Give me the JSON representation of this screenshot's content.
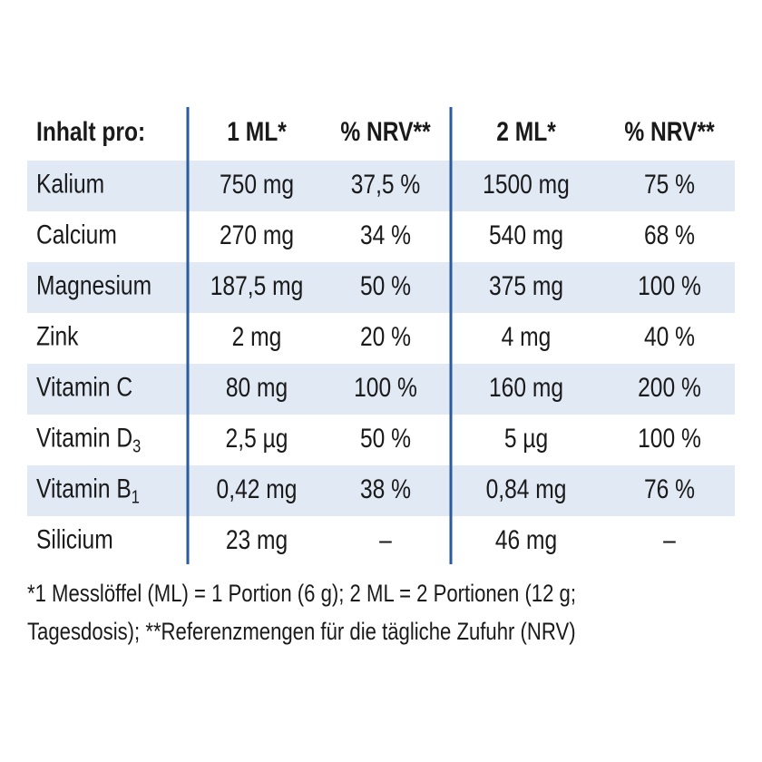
{
  "table": {
    "header": [
      "Inhalt pro:",
      "1 ML*",
      "% NRV**",
      "2 ML*",
      "% NRV**"
    ],
    "rows": [
      {
        "name": "Kalium",
        "cells": [
          "750 mg",
          "37,5 %",
          "1500 mg",
          "75 %"
        ]
      },
      {
        "name": "Calcium",
        "cells": [
          "270 mg",
          "34 %",
          "540 mg",
          "68 %"
        ]
      },
      {
        "name": "Magnesium",
        "cells": [
          "187,5 mg",
          "50 %",
          "375 mg",
          "100 %"
        ]
      },
      {
        "name": "Zink",
        "cells": [
          "2 mg",
          "20 %",
          "4 mg",
          "40 %"
        ]
      },
      {
        "name": "Vitamin C",
        "cells": [
          "80 mg",
          "100 %",
          "160 mg",
          "200 %"
        ]
      },
      {
        "name": "Vitamin D",
        "sub": "3",
        "cells": [
          "2,5 µg",
          "50 %",
          "5 µg",
          "100 %"
        ]
      },
      {
        "name": "Vitamin B",
        "sub": "1",
        "cells": [
          "0,42 mg",
          "38 %",
          "0,84 mg",
          "76 %"
        ]
      },
      {
        "name": "Silicium",
        "cells": [
          "23 mg",
          "–",
          "46 mg",
          "–"
        ]
      }
    ]
  },
  "footnote": [
    "*1 Messlöffel (ML) = 1 Portion (6 g); 2 ML = 2 Portionen (12 g;",
    "Tagesdosis); **Referenzmengen für die tägliche Zufuhr (NRV)"
  ]
}
